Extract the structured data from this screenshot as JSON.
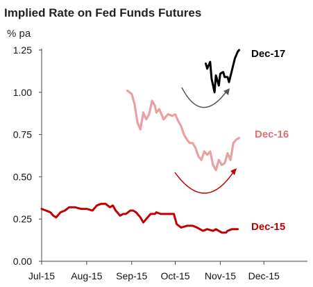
{
  "chart_data": {
    "type": "line",
    "title": "Implied Rate on Fed Funds Futures",
    "ylabel": "% pa",
    "xlabel": "",
    "ylim": [
      0.0,
      1.25
    ],
    "yticks": [
      "0.00",
      "0.25",
      "0.50",
      "0.75",
      "1.00",
      "1.25"
    ],
    "xticks": [
      "Jul-15",
      "Aug-15",
      "Sep-15",
      "Oct-15",
      "Nov-15",
      "Dec-15"
    ],
    "grid": false,
    "legend": "inline labels at right end of each series",
    "x_range": [
      "2015-07-01",
      "2015-12-31"
    ],
    "series": [
      {
        "name": "Dec-15",
        "color": "#c00000",
        "x": [
          "2015-07-01",
          "2015-07-04",
          "2015-07-07",
          "2015-07-09",
          "2015-07-11",
          "2015-07-14",
          "2015-07-17",
          "2015-07-20",
          "2015-07-24",
          "2015-07-28",
          "2015-08-01",
          "2015-08-05",
          "2015-08-08",
          "2015-08-11",
          "2015-08-14",
          "2015-08-17",
          "2015-08-19",
          "2015-08-21",
          "2015-08-24",
          "2015-08-26",
          "2015-08-28",
          "2015-08-31",
          "2015-09-02",
          "2015-09-04",
          "2015-09-07",
          "2015-09-09",
          "2015-09-11",
          "2015-09-14",
          "2015-09-17",
          "2015-09-18",
          "2015-09-21",
          "2015-09-25",
          "2015-09-30",
          "2015-10-02",
          "2015-10-05",
          "2015-10-09",
          "2015-10-13",
          "2015-10-16",
          "2015-10-20",
          "2015-10-23",
          "2015-10-27",
          "2015-10-29",
          "2015-11-02",
          "2015-11-05",
          "2015-11-06",
          "2015-11-09",
          "2015-11-11",
          "2015-11-13"
        ],
        "y": [
          0.31,
          0.3,
          0.29,
          0.27,
          0.26,
          0.29,
          0.3,
          0.32,
          0.32,
          0.31,
          0.31,
          0.3,
          0.33,
          0.34,
          0.34,
          0.32,
          0.33,
          0.3,
          0.27,
          0.28,
          0.28,
          0.3,
          0.3,
          0.29,
          0.26,
          0.23,
          0.25,
          0.28,
          0.28,
          0.29,
          0.28,
          0.28,
          0.28,
          0.22,
          0.2,
          0.21,
          0.21,
          0.2,
          0.18,
          0.19,
          0.18,
          0.19,
          0.17,
          0.17,
          0.18,
          0.19,
          0.19,
          0.19
        ]
      },
      {
        "name": "Dec-16",
        "color": "#e8a0a2",
        "x": [
          "2015-08-29",
          "2015-09-01",
          "2015-09-03",
          "2015-09-05",
          "2015-09-07",
          "2015-09-09",
          "2015-09-11",
          "2015-09-13",
          "2015-09-15",
          "2015-09-17",
          "2015-09-18",
          "2015-09-20",
          "2015-09-23",
          "2015-09-26",
          "2015-09-29",
          "2015-10-01",
          "2015-10-03",
          "2015-10-05",
          "2015-10-07",
          "2015-10-09",
          "2015-10-11",
          "2015-10-13",
          "2015-10-15",
          "2015-10-17",
          "2015-10-19",
          "2015-10-21",
          "2015-10-23",
          "2015-10-25",
          "2015-10-27",
          "2015-10-29",
          "2015-10-31",
          "2015-11-02",
          "2015-11-04",
          "2015-11-06",
          "2015-11-08",
          "2015-11-10",
          "2015-11-12",
          "2015-11-14"
        ],
        "y": [
          1.01,
          0.99,
          0.93,
          0.82,
          0.78,
          0.88,
          0.84,
          0.87,
          0.95,
          0.92,
          0.88,
          0.9,
          0.84,
          0.87,
          0.86,
          0.87,
          0.83,
          0.8,
          0.75,
          0.72,
          0.7,
          0.7,
          0.67,
          0.62,
          0.6,
          0.65,
          0.63,
          0.65,
          0.57,
          0.54,
          0.6,
          0.57,
          0.58,
          0.64,
          0.6,
          0.7,
          0.72,
          0.73
        ]
      },
      {
        "name": "Dec-17",
        "color": "#000000",
        "x": [
          "2015-10-22",
          "2015-10-23",
          "2015-10-25",
          "2015-10-26",
          "2015-10-28",
          "2015-10-29",
          "2015-10-31",
          "2015-11-01",
          "2015-11-03",
          "2015-11-04",
          "2015-11-06",
          "2015-11-07",
          "2015-11-09",
          "2015-11-11",
          "2015-11-13",
          "2015-11-14"
        ],
        "y": [
          1.17,
          1.14,
          1.18,
          1.08,
          1.0,
          1.1,
          1.04,
          1.11,
          1.12,
          1.09,
          1.09,
          1.06,
          1.13,
          1.2,
          1.24,
          1.25
        ]
      }
    ],
    "annotations": [
      {
        "type": "arrow",
        "color": "#555555",
        "note": "curved arrow under Dec-17"
      },
      {
        "type": "arrow",
        "color": "#c00000",
        "note": "curved arrow under Dec-16"
      }
    ]
  }
}
